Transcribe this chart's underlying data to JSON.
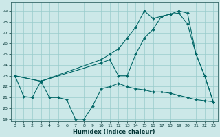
{
  "xlabel": "Humidex (Indice chaleur)",
  "bg_color": "#cce8e8",
  "grid_color": "#99cccc",
  "line_color": "#006666",
  "xlim": [
    -0.5,
    23.5
  ],
  "ylim": [
    18.8,
    29.8
  ],
  "yticks": [
    19,
    20,
    21,
    22,
    23,
    24,
    25,
    26,
    27,
    28,
    29
  ],
  "xticks": [
    0,
    1,
    2,
    3,
    4,
    5,
    6,
    7,
    8,
    9,
    10,
    11,
    12,
    13,
    14,
    15,
    16,
    17,
    18,
    19,
    20,
    21,
    22,
    23
  ],
  "line1_x": [
    0,
    1,
    2,
    3,
    4,
    5,
    6,
    7,
    8,
    9,
    10,
    11,
    12,
    13,
    14,
    15,
    16,
    17,
    18,
    19,
    20,
    21,
    22,
    23
  ],
  "line1_y": [
    23,
    21.1,
    21.0,
    22.5,
    21.0,
    21.0,
    20.8,
    19.0,
    19.0,
    20.2,
    21.8,
    22.0,
    22.3,
    22.0,
    21.8,
    21.7,
    21.5,
    21.5,
    21.4,
    21.2,
    21.0,
    20.8,
    20.7,
    20.6
  ],
  "line2_x": [
    0,
    3,
    10,
    11,
    12,
    13,
    14,
    15,
    16,
    17,
    18,
    19,
    20,
    21,
    22,
    23
  ],
  "line2_y": [
    23.0,
    22.5,
    24.2,
    24.5,
    23.0,
    23.0,
    25.0,
    26.5,
    27.3,
    28.5,
    28.7,
    28.8,
    27.8,
    25.0,
    23.0,
    20.6
  ],
  "line3_x": [
    0,
    3,
    10,
    11,
    12,
    13,
    14,
    15,
    16,
    17,
    18,
    19,
    20,
    21,
    22,
    23
  ],
  "line3_y": [
    23.0,
    22.5,
    24.5,
    25.0,
    25.5,
    26.5,
    27.5,
    29.0,
    28.3,
    28.5,
    28.7,
    29.0,
    28.8,
    25.0,
    23.0,
    20.6
  ]
}
